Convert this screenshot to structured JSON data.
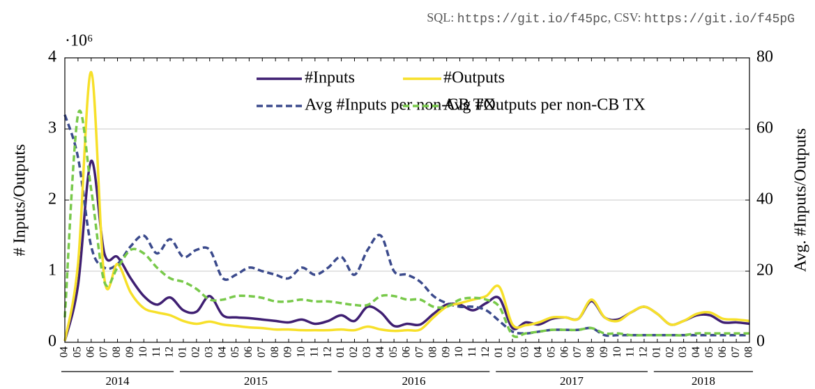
{
  "chart_data": {
    "type": "line",
    "source": {
      "sql_label": "SQL:",
      "sql_url": "https://git.io/f45pc",
      "csv_label": ", CSV:",
      "csv_url": "https://git.io/f45pG"
    },
    "y_multiplier": "·10⁶",
    "y_label": "# Inputs/Outputs",
    "y2_label": "Avg. #Inputs/Outputs",
    "categories": [
      "04",
      "05",
      "06",
      "07",
      "08",
      "09",
      "10",
      "11",
      "12",
      "01",
      "02",
      "03",
      "04",
      "05",
      "06",
      "07",
      "08",
      "09",
      "10",
      "11",
      "12",
      "01",
      "02",
      "03",
      "04",
      "05",
      "06",
      "07",
      "08",
      "09",
      "10",
      "11",
      "12",
      "01",
      "02",
      "03",
      "04",
      "05",
      "06",
      "07",
      "08",
      "09",
      "10",
      "11",
      "12",
      "01",
      "02",
      "03",
      "04",
      "05",
      "06",
      "07",
      "08"
    ],
    "year_groups": [
      {
        "label": "2014",
        "count": 9
      },
      {
        "label": "2015",
        "count": 12
      },
      {
        "label": "2016",
        "count": 12
      },
      {
        "label": "2017",
        "count": 12
      },
      {
        "label": "2018",
        "count": 8
      }
    ],
    "ylim": [
      0,
      4
    ],
    "yticks": [
      0,
      1,
      2,
      3,
      4
    ],
    "y2lim": [
      0,
      80
    ],
    "y2ticks": [
      0,
      20,
      40,
      60,
      80
    ],
    "grid": true,
    "legend": "top-right",
    "series": [
      {
        "name": "#Inputs",
        "color": "#3f1f72",
        "dash": false,
        "values": [
          0.02,
          0.8,
          2.55,
          1.25,
          1.2,
          0.9,
          0.65,
          0.53,
          0.63,
          0.45,
          0.43,
          0.65,
          0.38,
          0.35,
          0.34,
          0.32,
          0.3,
          0.28,
          0.32,
          0.26,
          0.3,
          0.38,
          0.3,
          0.5,
          0.42,
          0.23,
          0.26,
          0.25,
          0.4,
          0.53,
          0.53,
          0.45,
          0.55,
          0.62,
          0.2,
          0.28,
          0.25,
          0.33,
          0.35,
          0.33,
          0.58,
          0.35,
          0.32,
          0.42,
          0.5,
          0.4,
          0.25,
          0.3,
          0.38,
          0.38,
          0.28,
          0.28,
          0.26
        ]
      },
      {
        "name": "Avg #Inputs per non-CB TX",
        "color": "#3b4a8c",
        "dash": true,
        "axis": "y2",
        "values": [
          64,
          52,
          27,
          21,
          22,
          27,
          30,
          25,
          29,
          24,
          26,
          26,
          18,
          19,
          21,
          20,
          19,
          18,
          21,
          19,
          21,
          24,
          19,
          26,
          30,
          20,
          19,
          17,
          13,
          11,
          10,
          10,
          9,
          6,
          3,
          2.5,
          3,
          3.5,
          3.5,
          3.5,
          4,
          2,
          2,
          2,
          2,
          2,
          2,
          2,
          2,
          2,
          2,
          2,
          2
        ]
      },
      {
        "name": "#Outputs",
        "color": "#f7e02a",
        "dash": false,
        "values": [
          0.02,
          1.1,
          3.8,
          0.9,
          1.1,
          0.7,
          0.48,
          0.42,
          0.38,
          0.3,
          0.26,
          0.29,
          0.25,
          0.23,
          0.21,
          0.2,
          0.18,
          0.18,
          0.17,
          0.17,
          0.17,
          0.18,
          0.17,
          0.22,
          0.18,
          0.16,
          0.17,
          0.18,
          0.35,
          0.5,
          0.55,
          0.6,
          0.65,
          0.78,
          0.25,
          0.24,
          0.28,
          0.35,
          0.35,
          0.33,
          0.6,
          0.35,
          0.3,
          0.42,
          0.5,
          0.4,
          0.25,
          0.3,
          0.4,
          0.42,
          0.33,
          0.32,
          0.3
        ]
      },
      {
        "name": "Avg #Outputs per non-CB TX",
        "color": "#78c94a",
        "dash": true,
        "axis": "y2",
        "values": [
          7,
          64,
          43,
          17,
          21,
          26,
          25,
          21,
          18,
          17,
          15,
          12,
          12,
          13,
          13,
          12.5,
          11.5,
          11.5,
          12,
          11.5,
          11.5,
          11,
          10.5,
          10.5,
          13,
          13,
          12,
          12,
          10,
          10,
          12,
          12.5,
          12,
          10,
          2,
          2.5,
          3,
          3.5,
          3.5,
          3.5,
          4,
          2.5,
          2.5,
          2,
          2,
          2,
          2,
          2,
          2.5,
          2.5,
          2.5,
          2.5,
          2.5
        ]
      }
    ]
  }
}
